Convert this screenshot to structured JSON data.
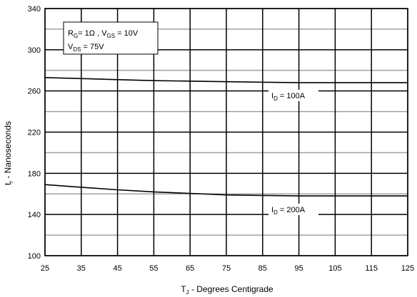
{
  "chart_data": {
    "type": "line",
    "title": "",
    "xlabel": {
      "main": "T",
      "sub": "J",
      "rest": " - Degrees Centigrade"
    },
    "ylabel": {
      "main": "t",
      "sub": "r",
      "rest": " - Nanoseconds"
    },
    "xlim": [
      25,
      125
    ],
    "ylim": [
      100,
      340
    ],
    "x_ticks": [
      25,
      35,
      45,
      55,
      65,
      75,
      85,
      95,
      105,
      115,
      125
    ],
    "y_ticks": [
      100,
      140,
      180,
      220,
      260,
      300,
      340
    ],
    "y_minor": [
      120,
      160,
      200,
      240,
      280,
      320
    ],
    "grid": true,
    "colors": {
      "line": "#000000",
      "major_grid": "#000000",
      "minor_grid": "#a0a0a0"
    },
    "conditions": {
      "line1": {
        "r": "R",
        "r_sub": "G",
        "r_val": "= 1Ω ,  ",
        "v": "V",
        "v_sub": "GS",
        "v_val": " = 10V"
      },
      "line2": {
        "v": "V",
        "v_sub": "DS",
        "v_val": " = 75V"
      }
    },
    "series": [
      {
        "label": {
          "main": "I",
          "sub": "D",
          "rest": " = 100A"
        },
        "x": [
          25,
          35,
          45,
          55,
          65,
          75,
          85,
          95,
          105,
          115,
          125
        ],
        "y": [
          273,
          272,
          271,
          270,
          269.5,
          269,
          268.5,
          268,
          268,
          268,
          268
        ]
      },
      {
        "label": {
          "main": "I",
          "sub": "D",
          "rest": " = 200A"
        },
        "x": [
          25,
          35,
          45,
          55,
          65,
          75,
          85,
          95,
          105,
          115,
          125
        ],
        "y": [
          169,
          166.5,
          164,
          162,
          160.5,
          159,
          158.5,
          158,
          158,
          158,
          158
        ]
      }
    ]
  }
}
